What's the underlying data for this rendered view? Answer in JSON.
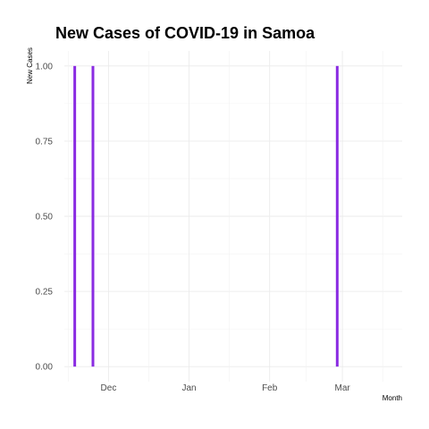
{
  "chart_data": {
    "type": "bar",
    "title": "New Cases of COVID-19 in Samoa",
    "xlabel": "Month",
    "ylabel": "New Cases",
    "x": [
      "2020-11-18",
      "2020-11-25",
      "2021-02-27"
    ],
    "values": [
      1,
      1,
      1
    ],
    "x_ticks": [
      {
        "label": "Dec",
        "date": "2020-12-01"
      },
      {
        "label": "Jan",
        "date": "2021-01-01"
      },
      {
        "label": "Feb",
        "date": "2021-02-01"
      },
      {
        "label": "Mar",
        "date": "2021-03-01"
      }
    ],
    "y_ticks": [
      "0.00",
      "0.25",
      "0.50",
      "0.75",
      "1.00"
    ],
    "xlim": [
      "2020-11-14",
      "2021-03-24"
    ],
    "ylim": [
      -0.05,
      1.05
    ],
    "bar_color": "#8a2be2",
    "grid": true,
    "legend": "none"
  }
}
